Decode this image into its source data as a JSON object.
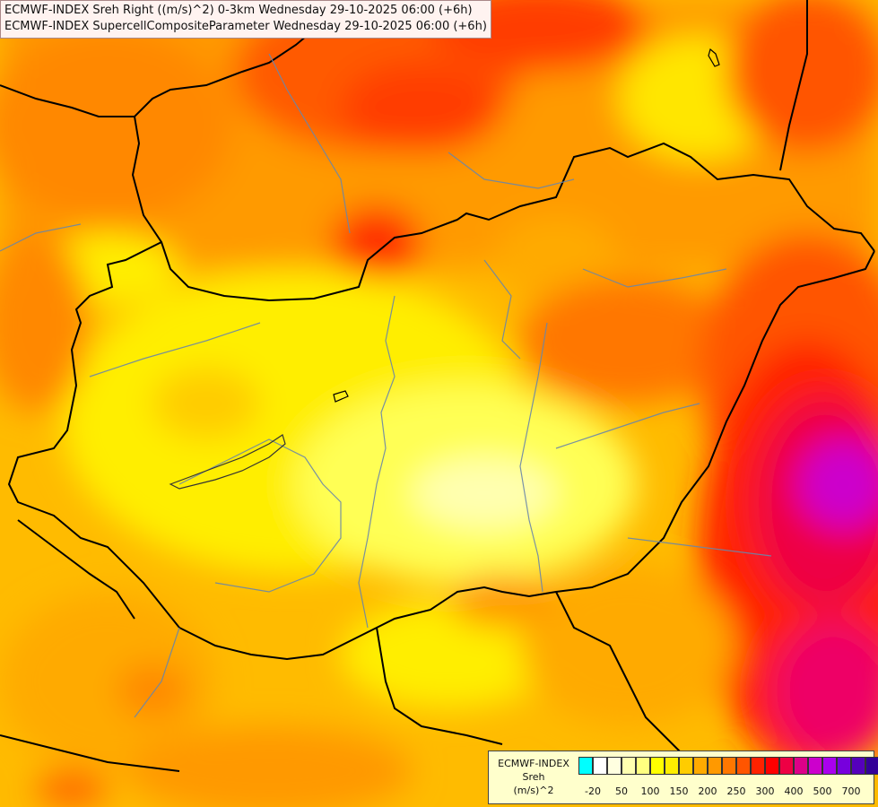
{
  "titles": {
    "line1": "ECMWF-INDEX Sreh Right ((m/s)^2) 0-3km Wednesday 29-10-2025 06:00 (+6h)",
    "line2": "ECMWF-INDEX SupercellCompositeParameter Wednesday 29-10-2025 06:00 (+6h)"
  },
  "legend": {
    "line1": "ECMWF-INDEX",
    "line2": "Sreh",
    "line3": "(m/s)^2",
    "colors": [
      "#00ffff",
      "#ffffff",
      "#ffffe0",
      "#ffffb0",
      "#ffff80",
      "#ffff00",
      "#ffee00",
      "#ffcc00",
      "#ffaa00",
      "#ff9900",
      "#ff7700",
      "#ff5500",
      "#ff2200",
      "#ff0000",
      "#ee0044",
      "#dd0088",
      "#cc00cc",
      "#aa00ee",
      "#7700dd",
      "#5500bb",
      "#330099",
      "#000088"
    ],
    "ticks": [
      "-20",
      "50",
      "100",
      "150",
      "200",
      "250",
      "300",
      "400",
      "500",
      "700"
    ]
  }
}
